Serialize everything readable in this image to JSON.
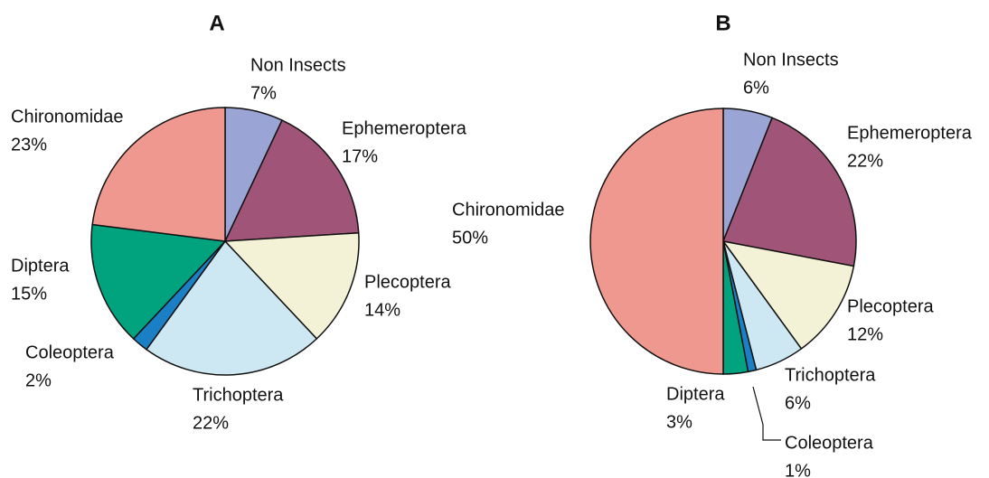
{
  "chart_data": [
    {
      "type": "pie",
      "title": "A",
      "categories": [
        "Non Insects",
        "Ephemeroptera",
        "Plecoptera",
        "Trichoptera",
        "Coleoptera",
        "Diptera",
        "Chironomidae"
      ],
      "values": [
        7,
        17,
        14,
        22,
        2,
        15,
        23
      ],
      "value_labels": [
        "7%",
        "17%",
        "14%",
        "22%",
        "2%",
        "15%",
        "23%"
      ],
      "colors": [
        "#9aa5d6",
        "#a05578",
        "#f3f2d6",
        "#cde7f3",
        "#1a7fc4",
        "#00a37d",
        "#ef9890"
      ]
    },
    {
      "type": "pie",
      "title": "B",
      "categories": [
        "Non Insects",
        "Ephemeroptera",
        "Plecoptera",
        "Trichoptera",
        "Coleoptera",
        "Diptera",
        "Chironomidae"
      ],
      "values": [
        6,
        22,
        12,
        6,
        1,
        3,
        50
      ],
      "value_labels": [
        "6%",
        "22%",
        "12%",
        "6%",
        "1%",
        "3%",
        "50%"
      ],
      "colors": [
        "#9aa5d6",
        "#a05578",
        "#f3f2d6",
        "#cde7f3",
        "#1a7fc4",
        "#00a37d",
        "#ef9890"
      ]
    }
  ]
}
